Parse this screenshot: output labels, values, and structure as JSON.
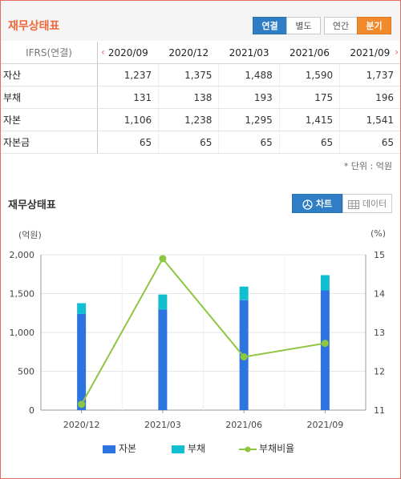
{
  "header": {
    "title": "재무상태표",
    "buttons": [
      "연결",
      "별도",
      "연간",
      "분기"
    ]
  },
  "table": {
    "ifrs_label": "IFRS(연결)",
    "periods": [
      "2020/09",
      "2020/12",
      "2021/03",
      "2021/06",
      "2021/09"
    ],
    "rows": [
      {
        "label": "자산",
        "values": [
          "1,237",
          "1,375",
          "1,488",
          "1,590",
          "1,737"
        ]
      },
      {
        "label": "부채",
        "values": [
          "131",
          "138",
          "193",
          "175",
          "196"
        ]
      },
      {
        "label": "자본",
        "values": [
          "1,106",
          "1,238",
          "1,295",
          "1,415",
          "1,541"
        ]
      },
      {
        "label": "자본금",
        "values": [
          "65",
          "65",
          "65",
          "65",
          "65"
        ]
      }
    ],
    "unit_note": "* 단위 : 억원"
  },
  "chart_section": {
    "title": "재무상태표",
    "tab_chart": "차트",
    "tab_data": "데이터",
    "left_unit": "(억원)",
    "right_unit": "(%)"
  },
  "legend": {
    "equity": "자본",
    "liability": "부채",
    "ratio": "부채비율"
  },
  "colors": {
    "equity": "#2d74e0",
    "liability": "#12bfd0",
    "ratio": "#8dc63f",
    "accent_orange": "#f08a2a",
    "accent_blue": "#2e7dc5"
  },
  "chart_data": {
    "type": "bar",
    "categories": [
      "2020/12",
      "2021/03",
      "2021/06",
      "2021/09"
    ],
    "series": [
      {
        "name": "자본",
        "values": [
          1238,
          1295,
          1415,
          1541
        ],
        "stack": "bar"
      },
      {
        "name": "부채",
        "values": [
          138,
          193,
          175,
          196
        ],
        "stack": "bar"
      },
      {
        "name": "부채비율",
        "values": [
          11.15,
          14.9,
          12.37,
          12.72
        ],
        "type": "line",
        "axis": "right"
      }
    ],
    "ylim": [
      0,
      2000
    ],
    "yticks": [
      "0",
      "500",
      "1,000",
      "1,500",
      "2,000"
    ],
    "y2lim": [
      11,
      15
    ],
    "y2ticks": [
      "11",
      "12",
      "13",
      "14",
      "15"
    ],
    "ylabel": "(억원)",
    "y2label": "(%)",
    "grid": true
  }
}
